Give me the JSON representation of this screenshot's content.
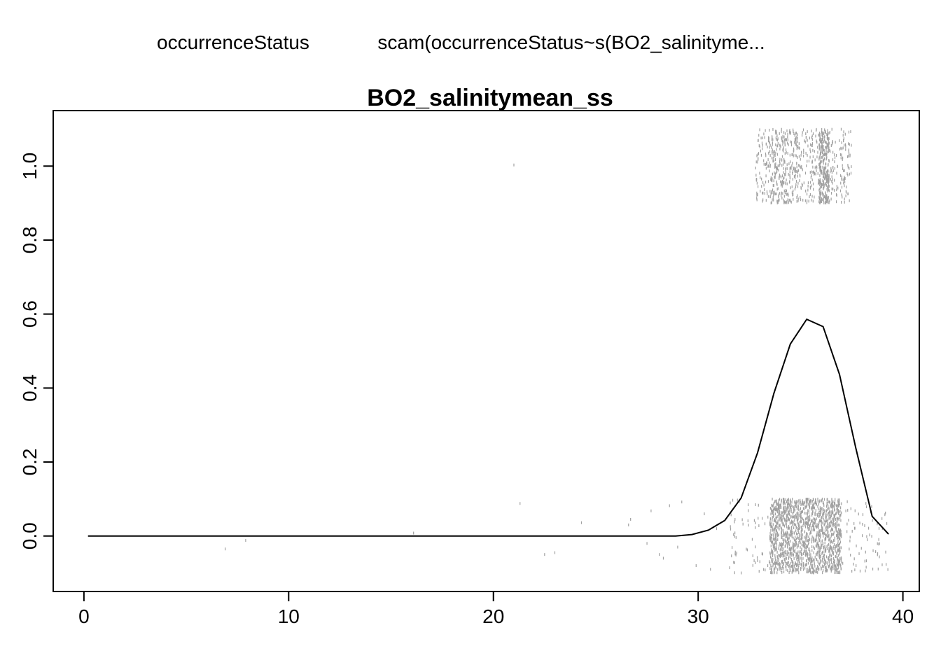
{
  "header": {
    "response_name": "occurrenceStatus",
    "model_formula": "scam(occurrenceStatus~s(BO2_salinityme..."
  },
  "chart_data": {
    "type": "line",
    "title": "BO2_salinitymean_ss",
    "xlabel": "",
    "ylabel": "",
    "xlim": [
      -1.5,
      40.8
    ],
    "ylim": [
      -0.15,
      1.15
    ],
    "x_ticks": [
      0,
      10,
      20,
      30,
      40
    ],
    "x_tick_labels": [
      "0",
      "10",
      "20",
      "30",
      "40"
    ],
    "y_ticks": [
      0.0,
      0.2,
      0.4,
      0.6,
      0.8,
      1.0
    ],
    "y_tick_labels": [
      "0.0",
      "0.2",
      "0.4",
      "0.6",
      "0.8",
      "1.0"
    ],
    "grid": false,
    "colors": {
      "curve": "#000000",
      "rug": "#a0a0a0",
      "frame": "#000000"
    },
    "series": [
      {
        "values_x": [
          0.2,
          28.9,
          29.7,
          30.5,
          31.3,
          32.1,
          32.9,
          33.7,
          34.5,
          35.3,
          36.1,
          36.9,
          37.7,
          38.5,
          39.3
        ],
        "values_y": [
          0.0,
          0.0,
          0.004,
          0.016,
          0.042,
          0.103,
          0.225,
          0.386,
          0.519,
          0.586,
          0.566,
          0.437,
          0.238,
          0.053,
          0.005
        ]
      }
    ],
    "rug_presence": {
      "y": 1.0,
      "jitter": 0.1,
      "clusters": [
        {
          "x_min": 32.8,
          "x_max": 37.5,
          "count": 520
        },
        {
          "x_min": 35.9,
          "x_max": 36.4,
          "count": 260
        },
        {
          "x_min": 33.4,
          "x_max": 34.9,
          "count": 180
        }
      ],
      "outliers": [
        {
          "x": 21.0,
          "y": 1.003
        }
      ]
    },
    "rug_absence": {
      "y": 0.0,
      "jitter": 0.1,
      "clusters": [
        {
          "x_min": 33.5,
          "x_max": 37.0,
          "count": 1500
        },
        {
          "x_min": 31.5,
          "x_max": 39.3,
          "count": 240
        }
      ],
      "outliers": [
        {
          "x": 6.9,
          "y": -0.035
        },
        {
          "x": 7.9,
          "y": -0.012
        },
        {
          "x": 16.1,
          "y": 0.008
        },
        {
          "x": 21.3,
          "y": 0.088
        },
        {
          "x": 22.5,
          "y": -0.05
        },
        {
          "x": 23.0,
          "y": -0.045
        },
        {
          "x": 24.3,
          "y": 0.036
        },
        {
          "x": 26.6,
          "y": 0.03
        },
        {
          "x": 26.7,
          "y": 0.045
        },
        {
          "x": 27.5,
          "y": -0.02
        },
        {
          "x": 27.7,
          "y": 0.068
        },
        {
          "x": 28.1,
          "y": -0.05
        },
        {
          "x": 28.3,
          "y": -0.06
        },
        {
          "x": 28.6,
          "y": 0.082
        },
        {
          "x": 29.0,
          "y": -0.03
        },
        {
          "x": 29.2,
          "y": 0.092
        },
        {
          "x": 29.9,
          "y": -0.08
        },
        {
          "x": 30.3,
          "y": 0.06
        },
        {
          "x": 30.6,
          "y": -0.09
        },
        {
          "x": 30.9,
          "y": 0.02
        }
      ]
    }
  }
}
